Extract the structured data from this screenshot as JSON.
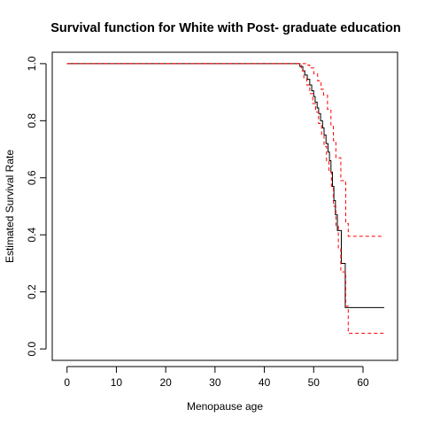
{
  "chart_data": {
    "type": "line",
    "title": "Survival function for White with Post- graduate education",
    "xlabel": "Menopause age",
    "ylabel": "Estimated Survival Rate",
    "xlim": [
      -3,
      67
    ],
    "ylim": [
      -0.04,
      1.04
    ],
    "xticks": [
      0,
      10,
      20,
      30,
      40,
      50,
      60
    ],
    "yticks": [
      0.0,
      0.2,
      0.4,
      0.6,
      0.8,
      1.0
    ],
    "grid": false,
    "legend": "none",
    "series": [
      {
        "role": "estimate",
        "color": "#000000",
        "style": "solid",
        "x": [
          0,
          47.2,
          47.8,
          48.2,
          48.7,
          49.2,
          49.6,
          50.0,
          50.3,
          50.7,
          51.0,
          51.4,
          51.8,
          52.1,
          52.5,
          52.9,
          53.2,
          53.5,
          53.8,
          54.1,
          54.4,
          54.8,
          55.2,
          55.6,
          56.0,
          56.4,
          56.8,
          64.3
        ],
        "y": [
          1.0,
          0.99,
          0.975,
          0.96,
          0.945,
          0.925,
          0.905,
          0.885,
          0.865,
          0.845,
          0.825,
          0.8,
          0.775,
          0.75,
          0.72,
          0.69,
          0.66,
          0.62,
          0.57,
          0.52,
          0.47,
          0.415,
          0.415,
          0.3,
          0.3,
          0.145,
          0.145,
          0.145
        ]
      },
      {
        "role": "upper-ci",
        "color": "#ff0000",
        "style": "dashed",
        "x": [
          0,
          47.8,
          48.5,
          49.2,
          50.0,
          50.8,
          51.5,
          52.0,
          52.8,
          53.5,
          54.0,
          54.5,
          55.0,
          55.5,
          56.0,
          56.5,
          57.0,
          64.3
        ],
        "y": [
          1.0,
          1.0,
          0.995,
          0.985,
          0.965,
          0.94,
          0.91,
          0.89,
          0.84,
          0.78,
          0.73,
          0.67,
          0.67,
          0.59,
          0.59,
          0.44,
          0.395,
          0.395
        ]
      },
      {
        "role": "lower-ci",
        "color": "#ff0000",
        "style": "dashed",
        "x": [
          0,
          47.0,
          47.5,
          48.0,
          48.6,
          49.2,
          49.8,
          50.4,
          51.0,
          51.6,
          52.1,
          52.6,
          53.1,
          53.6,
          54.0,
          54.5,
          55.0,
          55.5,
          56.0,
          56.5,
          57.0,
          64.3
        ],
        "y": [
          1.0,
          1.0,
          0.975,
          0.95,
          0.925,
          0.895,
          0.86,
          0.83,
          0.79,
          0.75,
          0.71,
          0.66,
          0.62,
          0.57,
          0.5,
          0.43,
          0.35,
          0.27,
          0.27,
          0.15,
          0.055,
          0.055
        ]
      }
    ]
  }
}
